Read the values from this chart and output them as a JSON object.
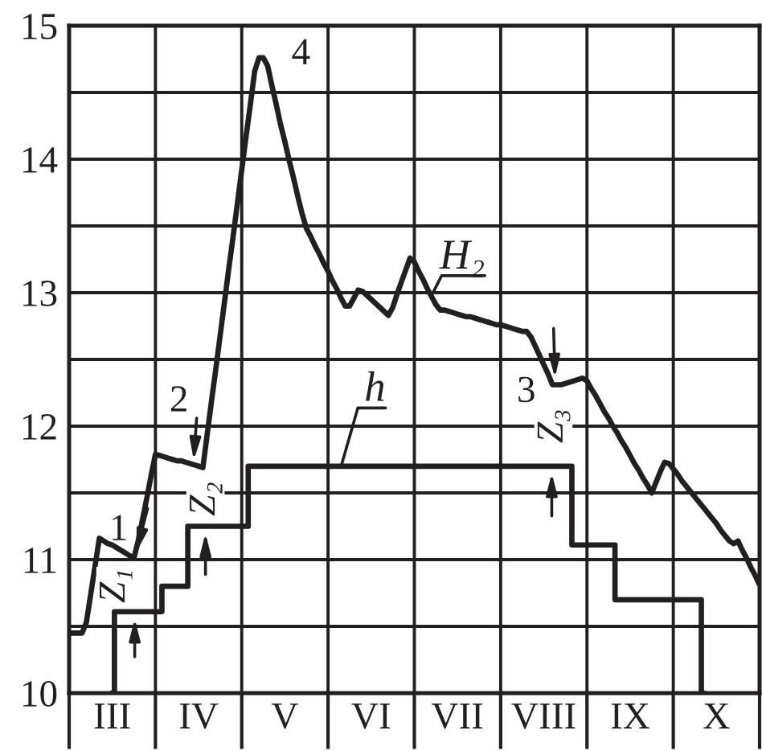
{
  "chart_data": {
    "type": "line",
    "categories": [
      null,
      null,
      null,
      null,
      null,
      null,
      null,
      null,
      null,
      null,
      "III",
      null,
      null,
      null,
      null,
      null,
      null,
      null,
      null,
      null,
      null,
      null,
      null,
      null,
      null,
      null,
      null,
      null,
      null,
      null,
      "IV",
      null,
      null,
      null,
      null,
      null,
      null,
      null,
      null,
      null,
      null,
      null,
      null,
      null,
      null,
      null,
      null,
      null,
      null,
      null,
      "V",
      null,
      null,
      null,
      null,
      null,
      null,
      null,
      null,
      null,
      null,
      null,
      null,
      null,
      null,
      null,
      null,
      null,
      null,
      null,
      "VI",
      null,
      null,
      null,
      null,
      null,
      null,
      null,
      null,
      null,
      null,
      null,
      null,
      null,
      null,
      null,
      null,
      null,
      null,
      null,
      "VII",
      null,
      null,
      null,
      null,
      null,
      null,
      null,
      null,
      null,
      null,
      null,
      null,
      null,
      null,
      null,
      null,
      null,
      null,
      null,
      "VIII",
      null,
      null,
      null,
      null,
      null,
      null,
      null,
      null,
      null,
      null,
      null,
      null,
      null,
      null,
      null,
      null,
      null,
      null,
      null,
      "IX",
      null,
      null,
      null,
      null,
      null,
      null,
      null,
      null,
      null,
      null,
      null,
      null,
      null,
      null,
      null,
      null,
      null,
      null,
      null,
      "X",
      null,
      null,
      null,
      null,
      null,
      null,
      null,
      null,
      null,
      null
    ],
    "ylim": [
      10,
      15
    ],
    "yticks": [
      10,
      {
        "value": 10.5,
        "label": null
      },
      11,
      {
        "value": 11.5,
        "label": null
      },
      12,
      {
        "value": 12.5,
        "label": null
      },
      13,
      {
        "value": 13.5,
        "label": null
      },
      14,
      {
        "value": 14.5,
        "label": null
      },
      15
    ],
    "grid": true,
    "series": [
      {
        "color": "#231f20",
        "values": [
          10.45,
          10.45,
          10.45,
          10.45,
          10.53,
          10.74,
          10.95,
          11.16,
          11.14,
          11.12,
          11.11,
          11.09,
          11.07,
          11.05,
          11.03,
          11.01,
          11.14,
          11.3,
          11.46,
          11.63,
          11.79,
          11.78,
          11.77,
          11.76,
          11.75,
          11.74,
          11.74,
          11.73,
          11.72,
          11.71,
          11.7,
          11.69,
          11.94,
          12.19,
          12.43,
          12.68,
          12.93,
          13.18,
          13.42,
          13.67,
          13.92,
          14.17,
          14.41,
          14.66,
          14.76,
          14.76,
          14.7,
          14.55,
          14.41,
          14.26,
          14.13,
          13.99,
          13.86,
          13.72,
          13.59,
          13.48,
          13.42,
          13.35,
          13.29,
          13.22,
          13.16,
          13.09,
          13.03,
          12.96,
          12.9,
          12.9,
          12.96,
          13.02,
          13.01,
          12.98,
          12.95,
          12.92,
          12.89,
          12.86,
          12.83,
          12.89,
          12.99,
          13.08,
          13.17,
          13.26,
          13.23,
          13.16,
          13.1,
          13.03,
          12.97,
          12.91,
          12.87,
          12.87,
          12.86,
          12.85,
          12.84,
          12.83,
          12.82,
          12.82,
          12.81,
          12.8,
          12.79,
          12.78,
          12.77,
          12.76,
          12.76,
          12.75,
          12.74,
          12.73,
          12.72,
          12.71,
          12.71,
          12.67,
          12.6,
          12.53,
          12.46,
          12.39,
          12.31,
          12.31,
          12.31,
          12.32,
          12.33,
          12.34,
          12.35,
          12.36,
          12.34,
          12.28,
          12.23,
          12.17,
          12.11,
          12.06,
          12.0,
          11.95,
          11.89,
          11.84,
          11.78,
          11.72,
          11.67,
          11.61,
          11.56,
          11.5,
          11.58,
          11.66,
          11.73,
          11.72,
          11.68,
          11.64,
          11.59,
          11.55,
          11.51,
          11.47,
          11.43,
          11.39,
          11.35,
          11.31,
          11.27,
          11.22,
          11.18,
          11.14,
          11.12,
          11.14,
          11.07,
          11.01,
          10.94,
          10.88,
          10.81
        ]
      },
      {
        "type": "step",
        "color": "#231f20",
        "values": [
          null,
          null,
          null,
          null,
          null,
          null,
          null,
          null,
          null,
          null,
          10,
          10.61,
          10.61,
          10.61,
          10.61,
          10.61,
          10.61,
          10.61,
          10.61,
          10.61,
          10.61,
          10.61,
          10.8,
          10.8,
          10.8,
          10.8,
          10.8,
          10.8,
          11.25,
          11.25,
          11.25,
          11.25,
          11.25,
          11.25,
          11.25,
          11.25,
          11.25,
          11.25,
          11.25,
          11.25,
          11.25,
          11.25,
          11.7,
          11.7,
          11.7,
          11.7,
          11.7,
          11.7,
          11.7,
          11.7,
          11.7,
          11.7,
          11.7,
          11.7,
          11.7,
          11.7,
          11.7,
          11.7,
          11.7,
          11.7,
          11.7,
          11.7,
          11.7,
          11.7,
          11.7,
          11.7,
          11.7,
          11.7,
          11.7,
          11.7,
          11.7,
          11.7,
          11.7,
          11.7,
          11.7,
          11.7,
          11.7,
          11.7,
          11.7,
          11.7,
          11.7,
          11.7,
          11.7,
          11.7,
          11.7,
          11.7,
          11.7,
          11.7,
          11.7,
          11.7,
          11.7,
          11.7,
          11.7,
          11.7,
          11.7,
          11.7,
          11.7,
          11.7,
          11.7,
          11.7,
          11.7,
          11.7,
          11.7,
          11.7,
          11.7,
          11.7,
          11.7,
          11.7,
          11.7,
          11.7,
          11.7,
          11.7,
          11.7,
          11.7,
          11.7,
          11.7,
          11.7,
          11.11,
          11.11,
          11.11,
          11.11,
          11.11,
          11.11,
          11.11,
          11.11,
          11.11,
          11.11,
          10.7,
          10.7,
          10.7,
          10.7,
          10.7,
          10.7,
          10.7,
          10.7,
          10.7,
          10.7,
          10.7,
          10.7,
          10.7,
          10.7,
          10.7,
          10.7,
          10.7,
          10.7,
          10.7,
          10.7,
          10,
          null,
          null,
          null,
          null,
          null,
          null,
          null,
          null,
          null,
          null,
          null,
          null,
          null
        ]
      }
    ],
    "annotations": [
      "1",
      "2",
      "3",
      "4",
      "Z₁",
      "Z₂",
      "Z₃",
      "H₂",
      {
        "text": "h",
        "y": 11.7
      }
    ]
  }
}
